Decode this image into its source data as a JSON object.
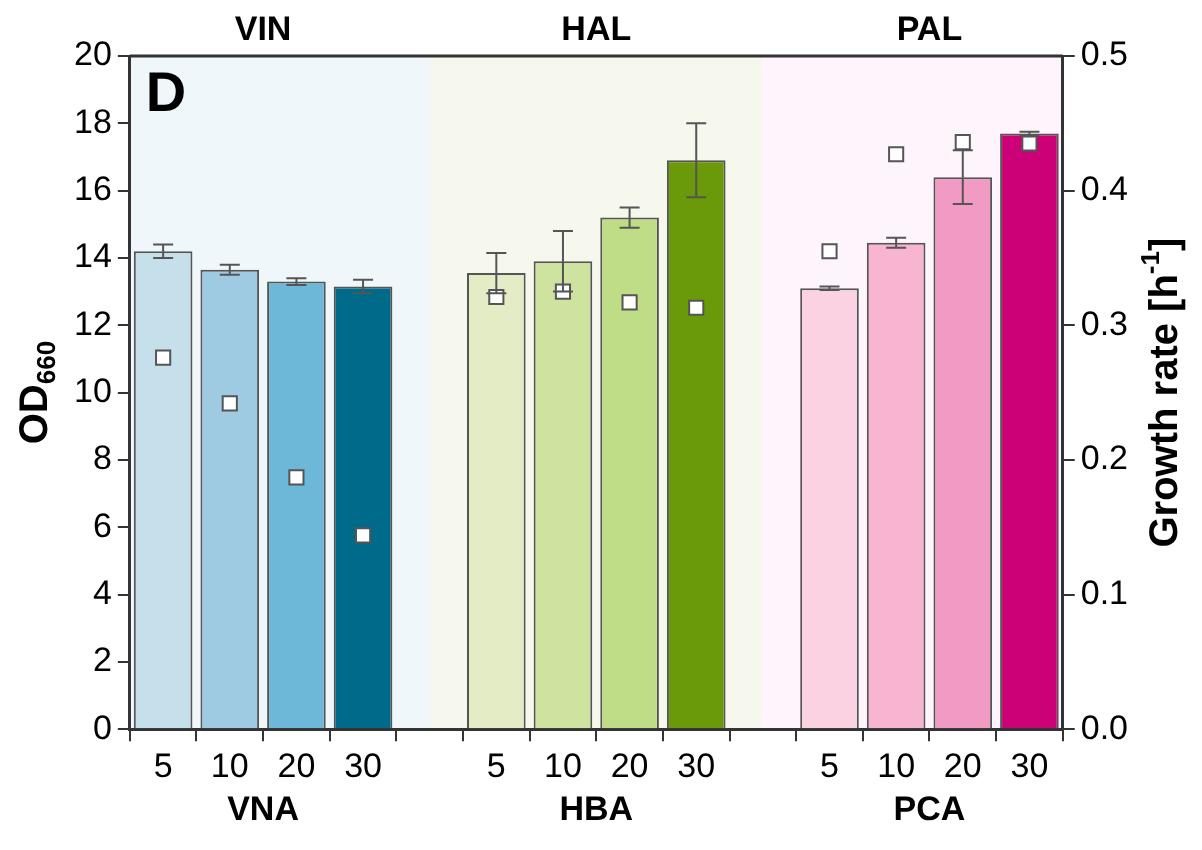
{
  "chart_data": {
    "type": "bar",
    "ylabel": "OD$_{660}$",
    "y2label": "Growth rate [h$^{-1}$]",
    "annotations": [
      "D",
      "VNA",
      "HBA",
      "PCA",
      "VIN",
      "HAL",
      "PAL"
    ],
    "categories": [
      "5",
      "10",
      "20",
      "30",
      null,
      "5",
      "10",
      "20",
      "30",
      null,
      "5",
      "10",
      "20",
      "30"
    ],
    "series": [
      {
        "colors": [
          "#c5e0ea",
          "#9ecbe1",
          "#6db8d8",
          "#006a8a",
          null,
          "#e3ecc4",
          "#cfe3a0",
          "#bfdc86",
          "#6a9a0a",
          null,
          "#fbd2e2",
          "#f7b5d2",
          "#f09ac4",
          "#cc0077"
        ],
        "values": [
          14.2,
          13.65,
          13.3,
          13.15,
          null,
          13.55,
          13.9,
          15.2,
          16.9,
          null,
          13.1,
          14.45,
          16.4,
          17.7
        ],
        "errors": [
          0.2,
          0.15,
          0.1,
          0.2,
          null,
          0.6,
          0.9,
          0.3,
          1.1,
          null,
          0.05,
          0.15,
          0.8,
          0.05
        ]
      },
      {
        "type": "scatter",
        "axis": "y2",
        "color": "#ffffff",
        "values": [
          0.276,
          0.242,
          0.187,
          0.144,
          null,
          0.321,
          0.325,
          0.317,
          0.313,
          null,
          0.355,
          0.427,
          0.436,
          0.435
        ]
      }
    ],
    "marker": "square",
    "ylim": [
      0,
      20
    ],
    "yticks": [
      0,
      2,
      4,
      6,
      8,
      10,
      12,
      14,
      16,
      18,
      20
    ],
    "y2lim": [
      0,
      0.5
    ],
    "y2ticks": [
      {
        "value": 0,
        "label": "0.0"
      },
      0.1,
      0.2,
      0.3,
      0.4,
      0.5
    ],
    "grid": false,
    "legend": false
  }
}
